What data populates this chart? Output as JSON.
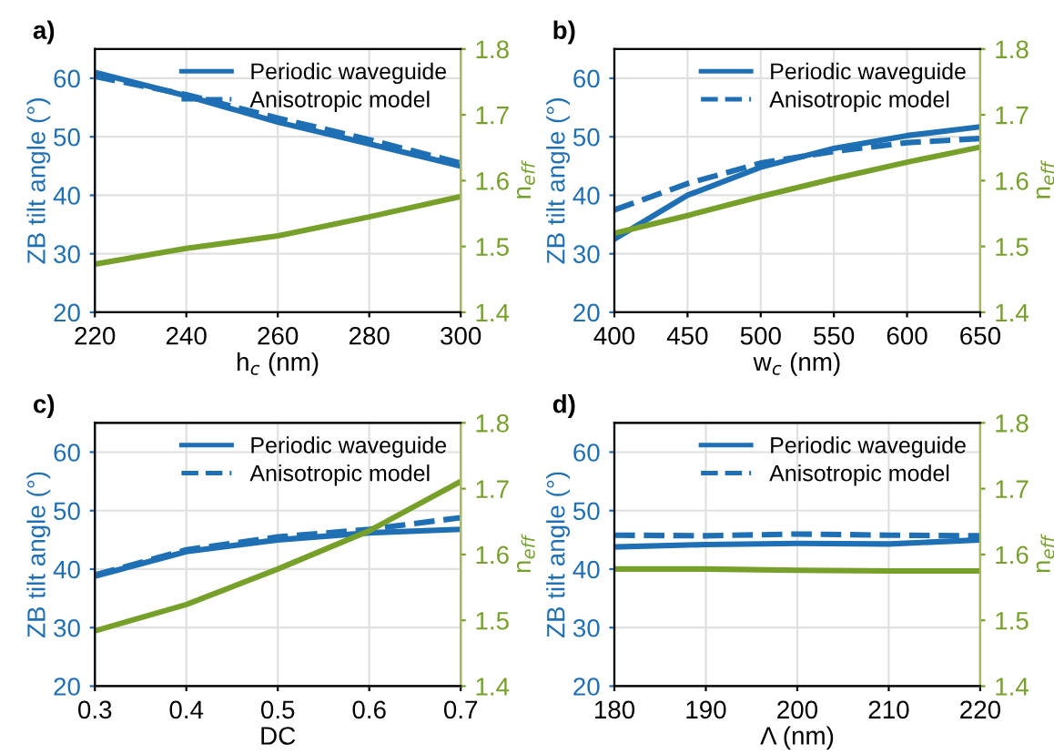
{
  "chart_data": [
    {
      "type": "line",
      "title": "a)",
      "xlabel": "h$_{c}$ (nm)",
      "ylabel": "ZB tilt angle (°)",
      "y2label": "n$_{eff}$",
      "x": [
        220,
        240,
        260,
        280,
        300
      ],
      "xlim": [
        220,
        300
      ],
      "xticks": [
        220,
        240,
        260,
        280,
        300
      ],
      "ylim": [
        20,
        65
      ],
      "yticks": [
        20,
        30,
        40,
        50,
        60
      ],
      "y2lim": [
        1.4,
        1.8
      ],
      "y2ticks": [
        1.4,
        1.5,
        1.6,
        1.7,
        1.8
      ],
      "grid": true,
      "legend": "top right",
      "series": [
        {
          "name": "Periodic waveguide",
          "color": "#1f6fb5",
          "line_style": "solid",
          "values": [
            61,
            57,
            52.5,
            48.8,
            45
          ]
        },
        {
          "name": "Anisotropic model",
          "color": "#1f6fb5",
          "line_style": "dashed",
          "values": [
            60.3,
            57.2,
            53.2,
            49.5,
            45.5
          ]
        },
        {
          "color": "#77a02a",
          "line_style": "solid",
          "axis": "y2",
          "values": [
            1.473,
            1.497,
            1.516,
            1.545,
            1.576
          ]
        }
      ]
    },
    {
      "type": "line",
      "title": "b)",
      "xlabel": "w$_{c}$ (nm)",
      "ylabel": "ZB tilt angle (°)",
      "y2label": "n$_{eff}$",
      "x": [
        400,
        450,
        500,
        550,
        600,
        650
      ],
      "xlim": [
        400,
        650
      ],
      "xticks": [
        400,
        450,
        500,
        550,
        600,
        650
      ],
      "ylim": [
        20,
        65
      ],
      "yticks": [
        20,
        30,
        40,
        50,
        60
      ],
      "y2lim": [
        1.4,
        1.8
      ],
      "y2ticks": [
        1.4,
        1.5,
        1.6,
        1.7,
        1.8
      ],
      "grid": true,
      "legend": "top right",
      "series": [
        {
          "name": "Periodic waveguide",
          "color": "#1f6fb5",
          "line_style": "solid",
          "values": [
            32.5,
            40,
            44.8,
            48,
            50.2,
            51.7
          ]
        },
        {
          "name": "Anisotropic model",
          "color": "#1f6fb5",
          "line_style": "dashed",
          "values": [
            37.5,
            42,
            45.5,
            47.5,
            49,
            49.7
          ]
        },
        {
          "color": "#77a02a",
          "line_style": "solid",
          "axis": "y2",
          "values": [
            1.52,
            1.547,
            1.576,
            1.603,
            1.628,
            1.651
          ]
        }
      ]
    },
    {
      "type": "line",
      "title": "c)",
      "xlabel": "DC",
      "ylabel": "ZB tilt angle (°)",
      "y2label": "n$_{eff}$",
      "x": [
        0.3,
        0.4,
        0.5,
        0.6,
        0.7
      ],
      "xlim": [
        0.3,
        0.7
      ],
      "xticks": [
        0.3,
        0.4,
        0.5,
        0.6,
        0.7
      ],
      "ylim": [
        20,
        65
      ],
      "yticks": [
        20,
        30,
        40,
        50,
        60
      ],
      "y2lim": [
        1.4,
        1.8
      ],
      "y2ticks": [
        1.4,
        1.5,
        1.6,
        1.7,
        1.8
      ],
      "grid": true,
      "legend": "top right",
      "series": [
        {
          "name": "Periodic waveguide",
          "color": "#1f6fb5",
          "line_style": "solid",
          "values": [
            38.8,
            43,
            45,
            46.2,
            46.8
          ]
        },
        {
          "name": "Anisotropic model",
          "color": "#1f6fb5",
          "line_style": "dashed",
          "values": [
            39,
            43.3,
            45.5,
            46.8,
            48.8
          ]
        },
        {
          "color": "#77a02a",
          "line_style": "solid",
          "axis": "y2",
          "values": [
            1.484,
            1.524,
            1.578,
            1.636,
            1.711
          ]
        }
      ]
    },
    {
      "type": "line",
      "title": "d)",
      "xlabel": "Λ (nm)",
      "ylabel": "ZB tilt angle (°)",
      "y2label": "n$_{eff}$",
      "x": [
        180,
        190,
        200,
        210,
        220
      ],
      "xlim": [
        180,
        220
      ],
      "xticks": [
        180,
        190,
        200,
        210,
        220
      ],
      "ylim": [
        20,
        65
      ],
      "yticks": [
        20,
        30,
        40,
        50,
        60
      ],
      "y2lim": [
        1.4,
        1.8
      ],
      "y2ticks": [
        1.4,
        1.5,
        1.6,
        1.7,
        1.8
      ],
      "grid": true,
      "legend": "top right",
      "series": [
        {
          "name": "Periodic waveguide",
          "color": "#1f6fb5",
          "line_style": "solid",
          "values": [
            43.8,
            44.2,
            44.4,
            44.3,
            45
          ]
        },
        {
          "name": "Anisotropic model",
          "color": "#1f6fb5",
          "line_style": "dashed",
          "values": [
            45.8,
            45.7,
            46,
            45.8,
            45.7
          ]
        },
        {
          "color": "#77a02a",
          "line_style": "solid",
          "axis": "y2",
          "values": [
            1.578,
            1.578,
            1.576,
            1.575,
            1.575
          ]
        }
      ]
    }
  ]
}
